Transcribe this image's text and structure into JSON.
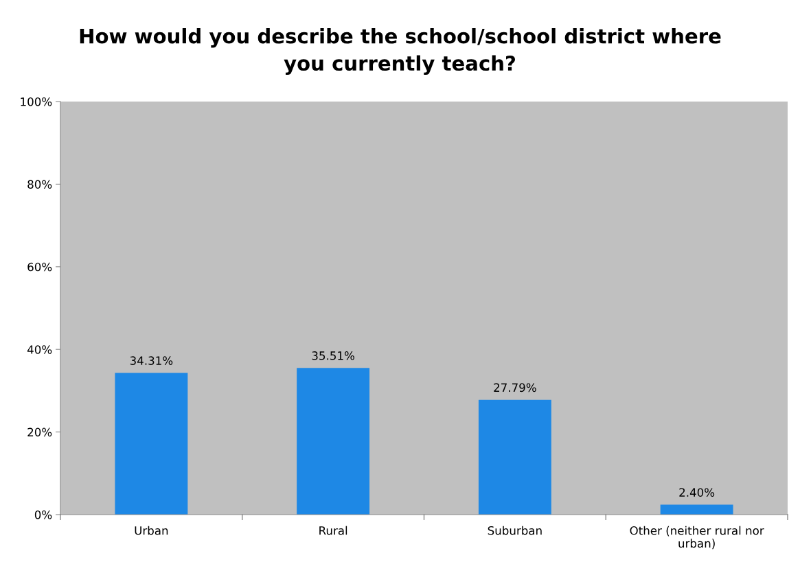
{
  "chart_data": {
    "type": "bar",
    "title": "How would you describe the school/school district where\nyou currently teach?",
    "categories": [
      "Urban",
      "Rural",
      "Suburban",
      "Other (neither rural nor\nurban)"
    ],
    "values": [
      34.31,
      35.51,
      27.79,
      2.4
    ],
    "value_labels": [
      "34.31%",
      "35.51%",
      "27.79%",
      "2.40%"
    ],
    "color": "#1e88e5",
    "ylim": [
      0,
      100
    ],
    "yticks": [
      {
        "value": 0,
        "label": "0%"
      },
      {
        "value": 20,
        "label": "20%"
      },
      {
        "value": 40,
        "label": "40%"
      },
      {
        "value": 60,
        "label": "60%"
      },
      {
        "value": 80,
        "label": "80%"
      },
      {
        "value": 100,
        "label": "100%"
      }
    ],
    "grid": false
  }
}
